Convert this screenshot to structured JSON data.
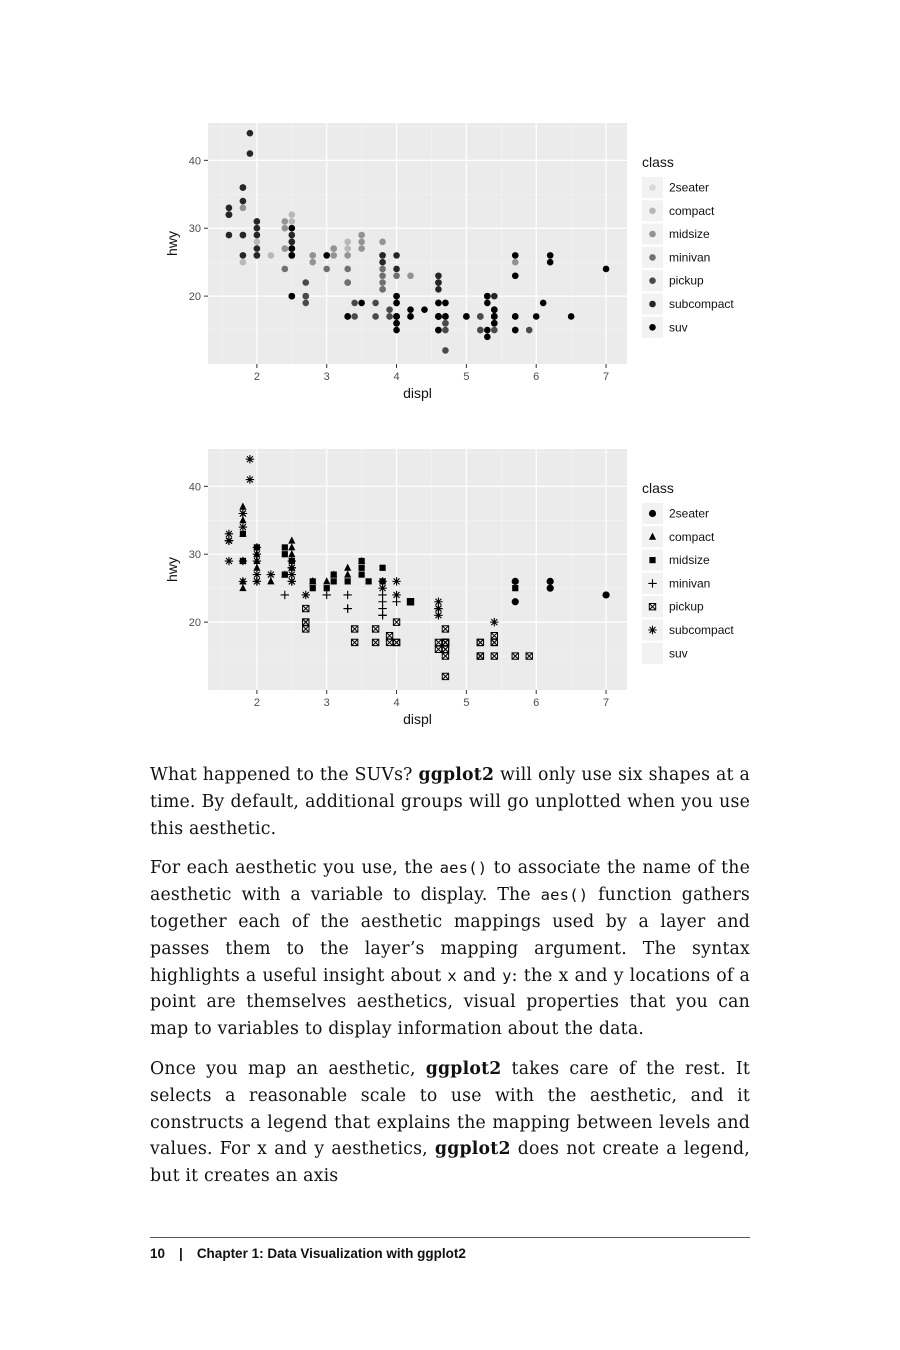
{
  "figures": [
    {
      "chart_data": {
        "type": "scatter",
        "encoding": "color",
        "xlabel": "displ",
        "ylabel": "hwy",
        "xlim": [
          1.3,
          7.3
        ],
        "ylim": [
          10,
          45.5
        ],
        "x_ticks": [
          2,
          3,
          4,
          5,
          6,
          7
        ],
        "y_ticks": [
          20,
          30,
          40
        ],
        "grid": true,
        "legend_title": "class",
        "legend_position": "right",
        "categories": [
          "2seater",
          "compact",
          "midsize",
          "minivan",
          "pickup",
          "subcompact",
          "suv"
        ],
        "colors": {
          "2seater": "#d9d9d9",
          "compact": "#b8b8b8",
          "midsize": "#939393",
          "minivan": "#707070",
          "pickup": "#4a4a4a",
          "subcompact": "#262626",
          "suv": "#000000"
        },
        "series": [
          {
            "name": "2seater",
            "x": [
              5.7,
              5.7,
              6.2,
              6.2,
              7.0
            ],
            "y": [
              26,
              23,
              26,
              25,
              24
            ]
          },
          {
            "name": "compact",
            "x": [
              1.8,
              1.8,
              2.0,
              2.0,
              2.8,
              2.8,
              3.1,
              1.8,
              1.8,
              2.0,
              2.0,
              2.4,
              2.5,
              2.5,
              2.2,
              2.5,
              2.5,
              3.3,
              3.5,
              3.0,
              3.3
            ],
            "y": [
              29,
              29,
              31,
              30,
              26,
              26,
              27,
              26,
              25,
              28,
              29,
              27,
              30,
              32,
              26,
              31,
              28,
              28,
              29,
              26,
              27
            ]
          },
          {
            "name": "midsize",
            "x": [
              2.8,
              3.1,
              4.2,
              2.4,
              2.4,
              3.3,
              3.5,
              3.5,
              1.8,
              1.8,
              2.0,
              2.8,
              3.1,
              2.4,
              2.5,
              3.5,
              3.8,
              3.8,
              5.7
            ],
            "y": [
              26,
              26,
              23,
              27,
              30,
              26,
              29,
              28,
              29,
              33,
              31,
              25,
              27,
              31,
              29,
              27,
              26,
              28,
              25
            ]
          },
          {
            "name": "minivan",
            "x": [
              2.4,
              3.0,
              3.3,
              3.3,
              3.3,
              3.8,
              3.8,
              3.8,
              4.0,
              3.8,
              3.8
            ],
            "y": [
              24,
              24,
              22,
              22,
              24,
              22,
              21,
              24,
              23,
              23,
              21
            ]
          },
          {
            "name": "pickup",
            "x": [
              2.7,
              2.7,
              3.4,
              4.0,
              4.7,
              4.7,
              4.7,
              5.2,
              5.7,
              3.7,
              3.7,
              3.9,
              4.7,
              5.2,
              5.9,
              4.7,
              4.7,
              5.2,
              5.4,
              5.4,
              2.7,
              2.7,
              3.4,
              4.0,
              4.7,
              4.7,
              4.7,
              5.2,
              5.4,
              5.4,
              4.7,
              3.9,
              4.0
            ],
            "y": [
              20,
              19,
              17,
              17,
              17,
              12,
              17,
              17,
              15,
              17,
              19,
              17,
              17,
              15,
              15,
              16,
              17,
              15,
              17,
              15,
              20,
              22,
              19,
              20,
              17,
              16,
              15,
              17,
              17,
              18,
              19,
              18,
              17
            ]
          },
          {
            "name": "subcompact",
            "x": [
              3.8,
              3.8,
              4.0,
              4.0,
              4.6,
              4.6,
              4.6,
              4.6,
              5.4,
              1.6,
              1.6,
              1.6,
              1.6,
              1.6,
              1.8,
              1.8,
              1.8,
              2.0,
              2.0,
              2.0,
              2.0,
              2.0,
              2.0,
              2.5,
              2.5,
              2.5,
              2.5,
              2.5,
              1.9,
              1.9,
              1.8,
              1.8,
              2.5
            ],
            "y": [
              26,
              25,
              26,
              24,
              21,
              22,
              23,
              22,
              20,
              33,
              32,
              32,
              29,
              32,
              34,
              36,
              36,
              29,
              26,
              27,
              30,
              31,
              26,
              26,
              28,
              26,
              29,
              28,
              44,
              41,
              29,
              26,
              27
            ]
          },
          {
            "name": "suv",
            "x": [
              5.3,
              5.3,
              5.3,
              5.7,
              6.0,
              5.7,
              5.7,
              6.2,
              6.2,
              7.0,
              5.3,
              5.3,
              5.7,
              6.5,
              2.5,
              2.5,
              2.5,
              3.5,
              4.0,
              4.0,
              4.0,
              4.6,
              5.4,
              4.6,
              5.4,
              5.4,
              4.0,
              4.0,
              4.6,
              4.6,
              4.6,
              5.0,
              4.2,
              4.2,
              4.6,
              4.6,
              4.6,
              5.4,
              5.4,
              3.0,
              4.7,
              4.7,
              5.7,
              6.1,
              4.0,
              4.2,
              4.4,
              4.6,
              5.4,
              5.4,
              5.4,
              4.0,
              4.0,
              4.6,
              5.0,
              2.5,
              2.5,
              3.3,
              3.3,
              4.0,
              4.0
            ],
            "y": [
              20,
              15,
              20,
              17,
              17,
              26,
              23,
              26,
              25,
              24,
              19,
              14,
              15,
              17,
              27,
              30,
              26,
              19,
              19,
              17,
              17,
              17,
              18,
              17,
              16,
              18,
              19,
              17,
              17,
              15,
              15,
              17,
              18,
              17,
              19,
              19,
              17,
              17,
              17,
              26,
              19,
              17,
              17,
              19,
              20,
              17,
              18,
              17,
              17,
              17,
              16,
              15,
              17,
              17,
              17,
              20,
              20,
              17,
              17,
              16,
              16
            ]
          }
        ]
      }
    },
    {
      "chart_data": {
        "type": "scatter",
        "encoding": "shape",
        "xlabel": "displ",
        "ylabel": "hwy",
        "xlim": [
          1.3,
          7.3
        ],
        "ylim": [
          10,
          45.5
        ],
        "x_ticks": [
          2,
          3,
          4,
          5,
          6,
          7
        ],
        "y_ticks": [
          20,
          30,
          40
        ],
        "grid": true,
        "legend_title": "class",
        "legend_position": "right",
        "categories": [
          "2seater",
          "compact",
          "midsize",
          "minivan",
          "pickup",
          "subcompact",
          "suv"
        ],
        "shapes": {
          "2seater": "circle",
          "compact": "triangle",
          "midsize": "square",
          "minivan": "plus",
          "pickup": "boxed-x",
          "subcompact": "asterisk",
          "suv": "none"
        },
        "note_unplotted": "suv",
        "series": [
          {
            "name": "2seater",
            "x": [
              5.7,
              5.7,
              6.2,
              6.2,
              7.0
            ],
            "y": [
              26,
              23,
              26,
              25,
              24
            ]
          },
          {
            "name": "compact",
            "x": [
              1.8,
              1.8,
              2.0,
              2.0,
              2.8,
              2.8,
              3.1,
              1.8,
              1.8,
              2.0,
              2.0,
              2.4,
              2.5,
              2.5,
              2.2,
              2.5,
              2.5,
              3.3,
              3.5,
              3.0,
              3.3,
              1.8,
              1.8,
              1.8
            ],
            "y": [
              29,
              29,
              31,
              30,
              26,
              26,
              27,
              26,
              25,
              28,
              29,
              27,
              30,
              32,
              26,
              31,
              28,
              28,
              29,
              26,
              27,
              37,
              35,
              33
            ]
          },
          {
            "name": "midsize",
            "x": [
              2.8,
              3.1,
              4.2,
              2.4,
              2.4,
              3.3,
              3.5,
              3.5,
              1.8,
              1.8,
              2.0,
              2.8,
              3.1,
              2.4,
              2.5,
              3.5,
              3.8,
              3.8,
              5.7,
              3.0,
              3.6
            ],
            "y": [
              26,
              26,
              23,
              27,
              30,
              26,
              29,
              28,
              29,
              33,
              31,
              25,
              27,
              31,
              29,
              27,
              26,
              28,
              25,
              25,
              26
            ]
          },
          {
            "name": "minivan",
            "x": [
              2.4,
              3.0,
              3.3,
              3.3,
              3.3,
              3.8,
              3.8,
              3.8,
              4.0,
              3.8,
              3.8
            ],
            "y": [
              24,
              24,
              22,
              22,
              24,
              22,
              21,
              24,
              23,
              23,
              21
            ]
          },
          {
            "name": "pickup",
            "x": [
              2.7,
              2.7,
              3.4,
              4.0,
              4.7,
              4.7,
              4.7,
              5.2,
              5.7,
              3.7,
              3.7,
              3.9,
              4.7,
              5.2,
              5.9,
              4.7,
              4.7,
              5.2,
              5.4,
              5.4,
              2.7,
              2.7,
              3.4,
              4.0,
              4.7,
              4.7,
              4.7,
              5.2,
              5.4,
              5.4,
              4.7,
              3.9,
              4.0,
              4.6,
              4.2,
              4.7,
              4.6
            ],
            "y": [
              20,
              19,
              17,
              17,
              17,
              12,
              17,
              17,
              15,
              17,
              19,
              17,
              17,
              15,
              15,
              16,
              17,
              15,
              17,
              15,
              20,
              22,
              19,
              20,
              17,
              16,
              15,
              17,
              17,
              18,
              19,
              18,
              17,
              16,
              23,
              17,
              17
            ]
          },
          {
            "name": "subcompact",
            "x": [
              3.8,
              3.8,
              4.0,
              4.0,
              4.6,
              4.6,
              4.6,
              4.6,
              5.4,
              1.6,
              1.6,
              1.6,
              1.6,
              1.6,
              1.8,
              1.8,
              1.8,
              2.0,
              2.0,
              2.0,
              2.0,
              2.0,
              2.0,
              2.5,
              2.5,
              2.5,
              2.5,
              2.5,
              1.9,
              1.9,
              1.8,
              1.8,
              2.5,
              2.2,
              2.7
            ],
            "y": [
              26,
              25,
              26,
              24,
              21,
              22,
              23,
              22,
              20,
              33,
              32,
              32,
              29,
              32,
              34,
              36,
              36,
              29,
              26,
              27,
              30,
              31,
              26,
              26,
              28,
              26,
              29,
              28,
              44,
              41,
              29,
              26,
              27,
              27,
              24
            ]
          },
          {
            "name": "suv",
            "x": [],
            "y": []
          }
        ]
      }
    }
  ],
  "paragraphs": [
    [
      {
        "t": "What happened to the SUVs? "
      },
      {
        "t": "ggplot2",
        "b": true
      },
      {
        "t": " will only use six shapes at a time. By default, additional groups will go unplotted when you use this aesthetic."
      }
    ],
    [
      {
        "t": "For each aesthetic you use, the "
      },
      {
        "t": "aes()",
        "m": true
      },
      {
        "t": " to associate the name of the aesthetic with a variable to display. The "
      },
      {
        "t": "aes()",
        "m": true
      },
      {
        "t": " function gathers together each of the aesthetic mappings used by a layer and passes them to the layer’s mapping argument. The syntax highlights a useful insight about "
      },
      {
        "t": "x",
        "m": true
      },
      {
        "t": " and "
      },
      {
        "t": "y",
        "m": true
      },
      {
        "t": ": the x and y locations of a point are themselves aesthetics, visual properties that you can map to variables to display information about the data."
      }
    ],
    [
      {
        "t": "Once you map an aesthetic, "
      },
      {
        "t": "ggplot2",
        "b": true
      },
      {
        "t": " takes care of the rest. It selects a reasonable scale to use with the aesthetic, and it constructs a legend that explains the mapping between levels and values. For x and y aesthetics, "
      },
      {
        "t": "ggplot2",
        "b": true
      },
      {
        "t": " does not create a legend, but it creates an axis"
      }
    ]
  ],
  "footer": {
    "page_number": "10",
    "separator": "|",
    "chapter": "Chapter 1: Data Visualization with ggplot2"
  }
}
